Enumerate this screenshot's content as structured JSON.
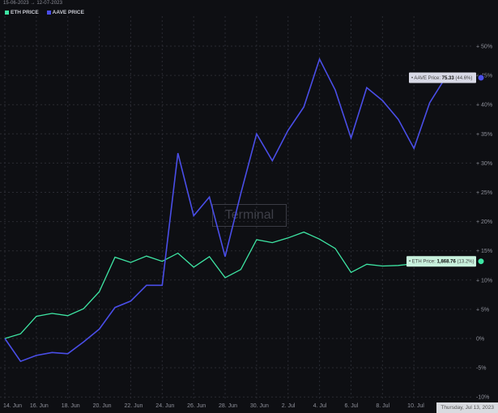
{
  "header": {
    "date_range": "15-06-2023 → 12-07-2023"
  },
  "legend": [
    {
      "label": "ETH PRICE",
      "color": "#3ee6a4"
    },
    {
      "label": "AAVE PRICE",
      "color": "#4a4ee8"
    }
  ],
  "watermark": "Terminal",
  "date_tooltip": "Thursday, Jul 13, 2023",
  "tooltips": {
    "aave": {
      "prefix": "• AAVE Price: ",
      "value": "75.33",
      "pct": "(44.6%)"
    },
    "eth": {
      "prefix": "• ETH Price: ",
      "value": "1,868.76",
      "pct": "(13.2%)"
    }
  },
  "chart_data": {
    "type": "line",
    "x": [
      "14. Jun",
      "15. Jun",
      "16. Jun",
      "17. Jun",
      "18. Jun",
      "19. Jun",
      "20. Jun",
      "21. Jun",
      "22. Jun",
      "23. Jun",
      "24. Jun",
      "25. Jun",
      "26. Jun",
      "27. Jun",
      "28. Jun",
      "29. Jun",
      "30. Jun",
      "1. Jul",
      "2. Jul",
      "3. Jul",
      "4. Jul",
      "5. Jul",
      "6. Jul",
      "7. Jul",
      "8. Jul",
      "9. Jul",
      "10. Jul",
      "11. Jul",
      "12. Jul"
    ],
    "x_tick_labels": [
      "14. Jun",
      "16. Jun",
      "18. Jun",
      "20. Jun",
      "22. Jun",
      "24. Jun",
      "26. Jun",
      "28. Jun",
      "30. Jun",
      "2. Jul",
      "4. Jul",
      "6. Jul",
      "8. Jul",
      "10. Jul"
    ],
    "y_tick_labels": [
      "-10%",
      "-5%",
      "0%",
      "+ 5%",
      "+ 10%",
      "+ 15%",
      "+ 20%",
      "+ 25%",
      "+ 30%",
      "+ 35%",
      "+ 40%",
      "+ 45%",
      "+ 50%"
    ],
    "ylim": [
      -10,
      52
    ],
    "y_unit": "%",
    "grid": true,
    "series": [
      {
        "name": "ETH PRICE",
        "color": "#3ee6a4",
        "values": [
          0,
          0.8,
          3.8,
          4.3,
          3.9,
          5.1,
          8.0,
          13.9,
          13.0,
          14.1,
          13.2,
          14.6,
          12.2,
          14.0,
          10.4,
          11.8,
          16.9,
          16.4,
          17.2,
          18.2,
          17.0,
          15.4,
          11.3,
          12.7,
          12.4,
          12.5,
          12.8,
          13.1,
          13.2
        ]
      },
      {
        "name": "AAVE PRICE",
        "color": "#4a4ee8",
        "values": [
          0,
          -3.9,
          -2.9,
          -2.4,
          -2.6,
          -0.6,
          1.6,
          5.3,
          6.4,
          9.1,
          9.1,
          31.7,
          21.0,
          24.2,
          14.0,
          24.8,
          35.0,
          30.4,
          35.6,
          39.6,
          47.8,
          42.5,
          34.3,
          42.9,
          40.7,
          37.5,
          32.5,
          40.3,
          44.6
        ]
      }
    ]
  }
}
